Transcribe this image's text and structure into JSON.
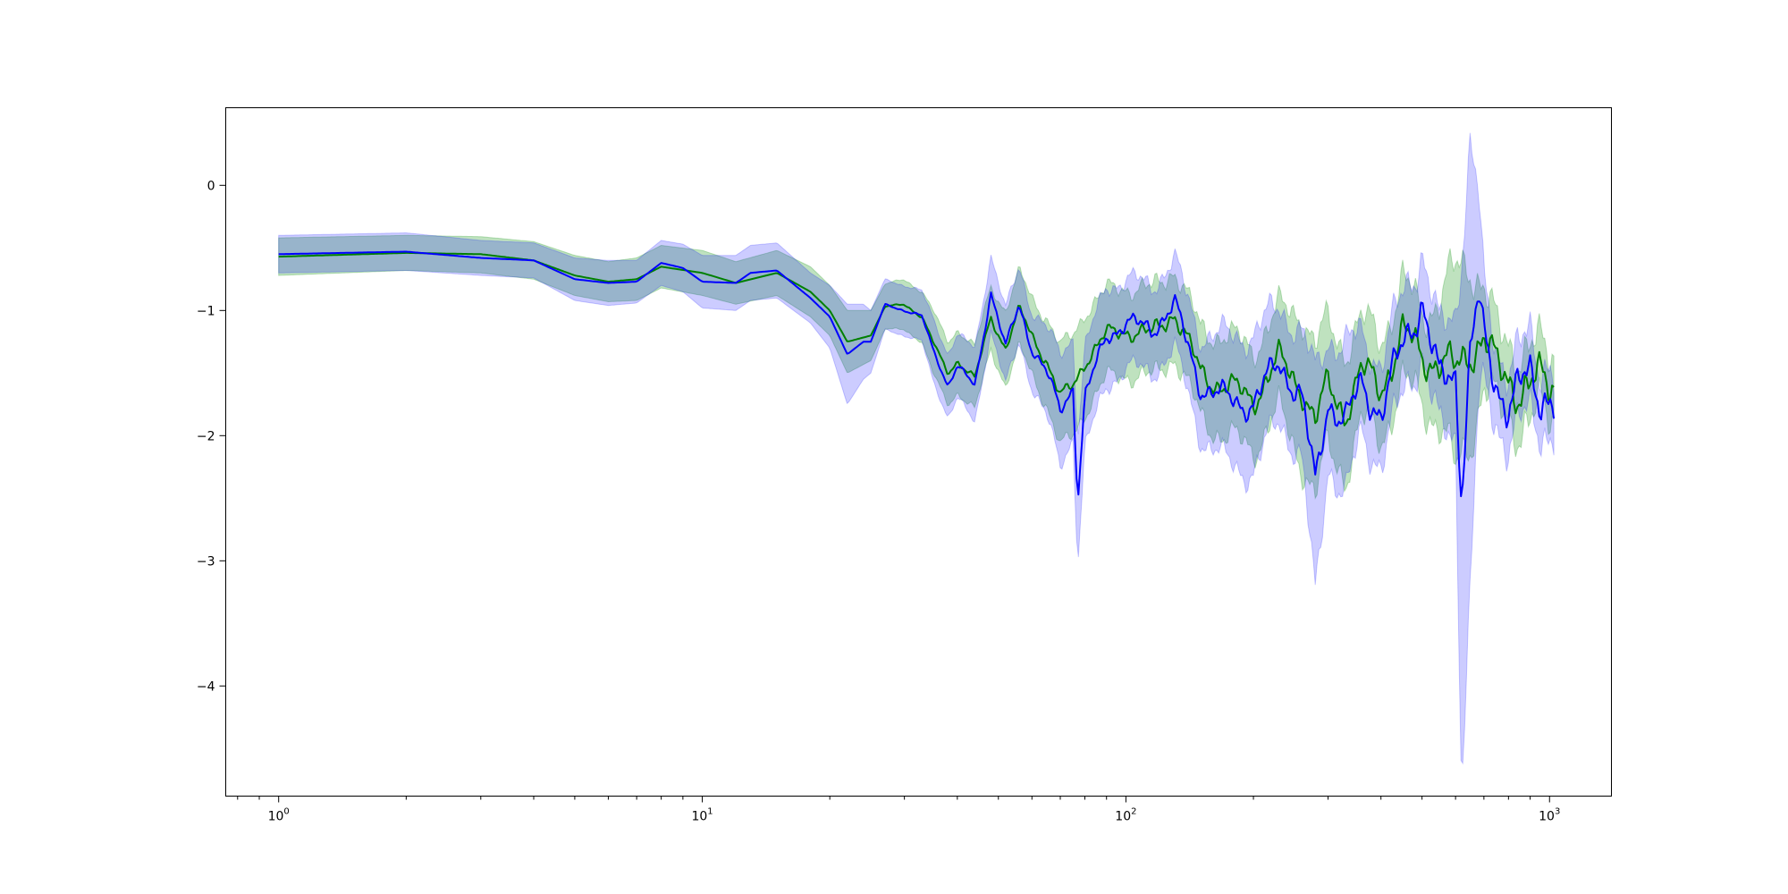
{
  "chart_data": {
    "type": "line",
    "title": "",
    "xlabel": "",
    "ylabel": "",
    "xscale": "log",
    "xlim": [
      0.75,
      1400
    ],
    "ylim": [
      -4.88,
      0.62
    ],
    "grid": false,
    "legend": "none",
    "x_ticks": [
      {
        "value": 1,
        "base": "10",
        "exp": "0"
      },
      {
        "value": 10,
        "base": "10",
        "exp": "1"
      },
      {
        "value": 100,
        "base": "10",
        "exp": "2"
      },
      {
        "value": 1000,
        "base": "10",
        "exp": "3"
      }
    ],
    "y_ticks": [
      {
        "value": 0,
        "label": "0"
      },
      {
        "value": -1,
        "label": "−1"
      },
      {
        "value": -2,
        "label": "−2"
      },
      {
        "value": -3,
        "label": "−3"
      },
      {
        "value": -4,
        "label": "−4"
      }
    ],
    "x_range": [
      1,
      1024
    ],
    "series": [
      {
        "color": "#008000",
        "band_color": "#2ca02c",
        "band_opacity": 0.3,
        "x": [
          1,
          2,
          3,
          4,
          5,
          6,
          7,
          8,
          10,
          12,
          15,
          18,
          20,
          22,
          25,
          27,
          30,
          33,
          35,
          38,
          40,
          44,
          48,
          52,
          56,
          60,
          65,
          70,
          75,
          80,
          90,
          100,
          115,
          130,
          150,
          170,
          200,
          230,
          260,
          280,
          300,
          330,
          360,
          400,
          450,
          500,
          550,
          600,
          650,
          700,
          750,
          800,
          850,
          900,
          950,
          1000,
          1024
        ],
        "y": [
          -0.57,
          -0.54,
          -0.55,
          -0.6,
          -0.72,
          -0.77,
          -0.75,
          -0.65,
          -0.7,
          -0.78,
          -0.7,
          -0.85,
          -1.0,
          -1.25,
          -1.2,
          -0.97,
          -0.95,
          -1.05,
          -1.25,
          -1.5,
          -1.4,
          -1.55,
          -1.05,
          -1.3,
          -1.0,
          -1.2,
          -1.4,
          -1.7,
          -1.6,
          -1.4,
          -1.2,
          -1.15,
          -1.2,
          -1.0,
          -1.5,
          -1.6,
          -1.7,
          -1.4,
          -1.6,
          -1.9,
          -1.6,
          -1.8,
          -1.5,
          -1.6,
          -1.2,
          -1.35,
          -1.4,
          -1.5,
          -1.3,
          -1.2,
          -1.5,
          -1.55,
          -1.6,
          -1.6,
          -1.6,
          -1.6,
          -1.6
        ],
        "lower": [
          -0.72,
          -0.68,
          -0.7,
          -0.75,
          -0.88,
          -0.93,
          -0.92,
          -0.82,
          -0.88,
          -0.95,
          -0.88,
          -1.05,
          -1.2,
          -1.5,
          -1.4,
          -1.15,
          -1.15,
          -1.25,
          -1.5,
          -1.75,
          -1.65,
          -1.8,
          -1.3,
          -1.6,
          -1.3,
          -1.5,
          -1.75,
          -2.1,
          -2.0,
          -1.8,
          -1.55,
          -1.5,
          -1.55,
          -1.35,
          -1.85,
          -2.0,
          -2.1,
          -1.8,
          -2.2,
          -2.5,
          -2.1,
          -2.3,
          -1.9,
          -2.0,
          -1.6,
          -1.7,
          -1.9,
          -2.3,
          -2.0,
          -1.6,
          -1.8,
          -1.85,
          -1.9,
          -1.9,
          -1.85,
          -1.85,
          -1.85
        ],
        "upper": [
          -0.42,
          -0.4,
          -0.41,
          -0.45,
          -0.56,
          -0.61,
          -0.58,
          -0.48,
          -0.52,
          -0.61,
          -0.52,
          -0.65,
          -0.8,
          -1.0,
          -1.0,
          -0.79,
          -0.75,
          -0.85,
          -1.0,
          -1.25,
          -1.15,
          -1.3,
          -0.8,
          -1.0,
          -0.7,
          -0.9,
          -1.05,
          -1.3,
          -1.2,
          -1.0,
          -0.85,
          -0.8,
          -0.85,
          -0.65,
          -1.15,
          -1.2,
          -1.3,
          -1.0,
          -1.0,
          -1.3,
          -1.1,
          -1.3,
          -1.1,
          -1.2,
          -0.8,
          -1.0,
          -0.9,
          -0.7,
          -0.6,
          -0.8,
          -1.2,
          -1.25,
          -1.3,
          -1.3,
          -1.35,
          -1.35,
          -1.35
        ]
      },
      {
        "color": "#0000ff",
        "band_color": "#0000ff",
        "band_opacity": 0.2,
        "x": [
          1,
          2,
          3,
          4,
          5,
          6,
          7,
          8,
          9,
          10,
          12,
          13,
          15,
          18,
          20,
          22,
          24,
          25,
          27,
          30,
          33,
          35,
          38,
          40,
          44,
          48,
          52,
          56,
          60,
          65,
          70,
          75,
          77,
          80,
          90,
          100,
          115,
          130,
          150,
          170,
          200,
          230,
          260,
          280,
          300,
          330,
          360,
          400,
          450,
          500,
          550,
          600,
          620,
          650,
          680,
          700,
          750,
          800,
          850,
          900,
          950,
          1000,
          1024
        ],
        "y": [
          -0.55,
          -0.53,
          -0.58,
          -0.6,
          -0.75,
          -0.78,
          -0.77,
          -0.62,
          -0.66,
          -0.77,
          -0.78,
          -0.7,
          -0.68,
          -0.9,
          -1.05,
          -1.35,
          -1.25,
          -1.25,
          -0.95,
          -1.0,
          -1.05,
          -1.3,
          -1.6,
          -1.45,
          -1.6,
          -0.85,
          -1.3,
          -0.95,
          -1.3,
          -1.5,
          -1.8,
          -1.6,
          -2.5,
          -1.7,
          -1.2,
          -1.1,
          -1.15,
          -0.95,
          -1.6,
          -1.7,
          -1.75,
          -1.4,
          -1.7,
          -2.4,
          -1.7,
          -1.9,
          -1.6,
          -1.8,
          -1.3,
          -0.9,
          -1.6,
          -1.5,
          -2.4,
          -1.3,
          -0.9,
          -1.3,
          -1.6,
          -1.7,
          -1.6,
          -1.6,
          -1.7,
          -1.6,
          -1.65
        ],
        "lower": [
          -0.7,
          -0.68,
          -0.72,
          -0.74,
          -0.92,
          -0.96,
          -0.94,
          -0.8,
          -0.85,
          -0.98,
          -1.0,
          -0.92,
          -0.9,
          -1.1,
          -1.3,
          -1.75,
          -1.55,
          -1.5,
          -1.15,
          -1.2,
          -1.25,
          -1.55,
          -1.85,
          -1.7,
          -1.9,
          -1.15,
          -1.6,
          -1.25,
          -1.6,
          -1.85,
          -2.25,
          -2.0,
          -3.0,
          -2.1,
          -1.6,
          -1.45,
          -1.5,
          -1.3,
          -2.0,
          -2.2,
          -2.3,
          -1.85,
          -2.2,
          -3.3,
          -2.2,
          -2.5,
          -2.0,
          -2.2,
          -1.7,
          -1.3,
          -2.0,
          -2.0,
          -4.65,
          -3.2,
          -1.7,
          -1.7,
          -1.9,
          -2.0,
          -1.9,
          -1.9,
          -1.95,
          -1.9,
          -1.9
        ],
        "upper": [
          -0.4,
          -0.38,
          -0.44,
          -0.46,
          -0.58,
          -0.6,
          -0.6,
          -0.44,
          -0.47,
          -0.56,
          -0.56,
          -0.48,
          -0.46,
          -0.7,
          -0.8,
          -0.95,
          -0.95,
          -1.0,
          -0.75,
          -0.8,
          -0.85,
          -1.05,
          -1.35,
          -1.2,
          -1.3,
          -0.55,
          -1.0,
          -0.65,
          -1.0,
          -1.15,
          -1.35,
          -1.2,
          -2.0,
          -1.3,
          -0.8,
          -0.75,
          -0.8,
          -0.6,
          -1.2,
          -1.2,
          -1.2,
          -0.95,
          -1.2,
          -1.5,
          -1.2,
          -1.3,
          -1.2,
          -1.4,
          -0.9,
          -0.5,
          -1.2,
          -1.0,
          -0.5,
          0.35,
          -0.1,
          -0.9,
          -1.3,
          -1.4,
          -1.3,
          -1.3,
          -1.45,
          -1.3,
          -1.4
        ]
      }
    ]
  }
}
